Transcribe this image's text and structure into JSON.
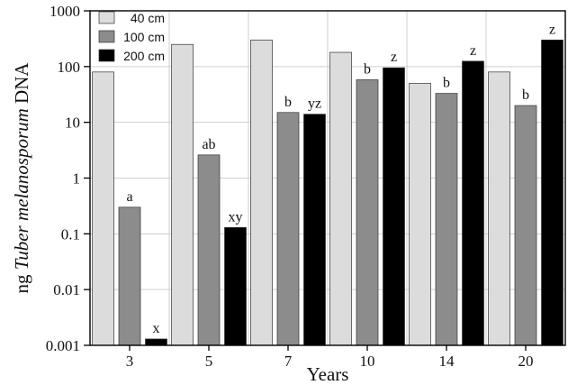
{
  "chart_data": {
    "type": "bar",
    "title": "",
    "xlabel": "Years",
    "ylabel_prefix": "ng ",
    "ylabel_italic": "Tuber melanosporum",
    "ylabel_suffix": " DNA",
    "y_scale": "log",
    "ylim": [
      0.001,
      1000
    ],
    "y_ticks": [
      0.001,
      0.01,
      0.1,
      1,
      10,
      100,
      1000
    ],
    "y_tick_labels": [
      "0.001",
      "0.01",
      "0.1",
      "1",
      "10",
      "100",
      "1000"
    ],
    "grid": true,
    "legend_position": "top-left",
    "categories": [
      "3",
      "5",
      "7",
      "10",
      "14",
      "20"
    ],
    "series": [
      {
        "name": "40 cm",
        "color": "#dcdcdc",
        "values": [
          80,
          250,
          300,
          180,
          50,
          80
        ],
        "labels": [
          "",
          "",
          "",
          "",
          "",
          ""
        ]
      },
      {
        "name": "100 cm",
        "color": "#8c8c8c",
        "values": [
          0.3,
          2.6,
          15,
          58,
          33,
          20
        ],
        "labels": [
          "a",
          "ab",
          "b",
          "b",
          "b",
          "b"
        ]
      },
      {
        "name": "200 cm",
        "color": "#000000",
        "values": [
          0.0013,
          0.13,
          14,
          95,
          125,
          300
        ],
        "labels": [
          "x",
          "xy",
          "yz",
          "z",
          "z",
          "z"
        ]
      }
    ]
  }
}
